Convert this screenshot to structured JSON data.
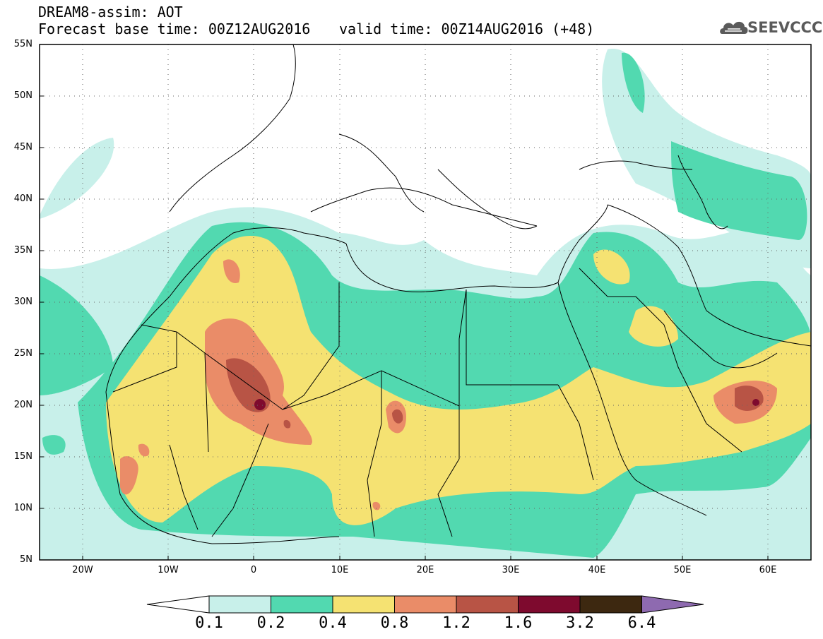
{
  "header": {
    "title_line1": "DREAM8-assim: AOT",
    "title_line2": "Forecast base time: 00Z12AUG2016",
    "valid_time": "valid time: 00Z14AUG2016 (+48)",
    "logo_text": "SEEVCCC"
  },
  "map": {
    "lat_labels": [
      "55N",
      "50N",
      "45N",
      "40N",
      "35N",
      "30N",
      "25N",
      "20N",
      "15N",
      "10N",
      "5N"
    ],
    "lon_labels": [
      "20W",
      "10W",
      "0",
      "10E",
      "20E",
      "30E",
      "40E",
      "50E",
      "60E"
    ]
  },
  "colorbar": {
    "labels": [
      "0.1",
      "0.2",
      "0.4",
      "0.8",
      "1.2",
      "1.6",
      "3.2",
      "6.4"
    ],
    "colors": [
      "#c8f0ea",
      "#52d9b0",
      "#f5e272",
      "#ea8c68",
      "#b85445",
      "#7e0a2e",
      "#3d2810",
      "#8e6ab0"
    ],
    "low_color": "#ffffff"
  },
  "colors": {
    "c01": "#c8f0ea",
    "c02": "#52d9b0",
    "c04": "#f5e272",
    "c08": "#ea8c68",
    "c12": "#b85445",
    "c16": "#7e0a2e"
  }
}
